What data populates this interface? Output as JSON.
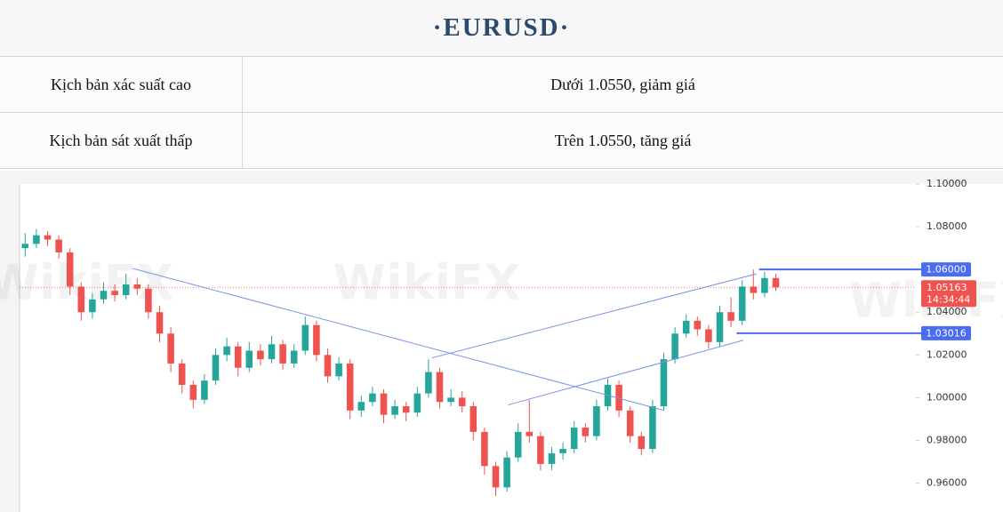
{
  "header": {
    "title": "·EURUSD·"
  },
  "table": {
    "rows": [
      [
        "Kịch bản xác suất cao",
        "Dưới 1.0550, giảm giá"
      ],
      [
        "Kịch bản sát xuất thấp",
        "Trên 1.0550, tăng giá"
      ]
    ]
  },
  "chart_data": {
    "type": "candlestick",
    "watermark": "WikiFX",
    "xlim": [
      -0.5,
      79.5
    ],
    "ylim": [
      0.949,
      1.1
    ],
    "yticks": [
      {
        "value": 0.96,
        "label": "0.96000"
      },
      {
        "value": 0.98,
        "label": "0.98000"
      },
      {
        "value": 1.0,
        "label": "1.00000"
      },
      {
        "value": 1.02,
        "label": "1.02000"
      },
      {
        "value": 1.04,
        "label": "1.04000"
      },
      {
        "value": 1.08,
        "label": "1.08000"
      },
      {
        "value": 1.1,
        "label": "1.10000"
      }
    ],
    "grid": false,
    "up_color": "#26a69a",
    "down_color": "#ef5350",
    "open": [
      1.07,
      1.072,
      1.076,
      1.074,
      1.068,
      1.052,
      1.04,
      1.046,
      1.05,
      1.048,
      1.053,
      1.051,
      1.04,
      1.03,
      1.016,
      1.006,
      0.999,
      1.008,
      1.02,
      1.024,
      1.014,
      1.022,
      1.018,
      1.025,
      1.016,
      1.022,
      1.034,
      1.02,
      1.01,
      1.016,
      0.994,
      0.998,
      1.002,
      0.992,
      0.996,
      0.993,
      1.002,
      1.012,
      0.998,
      1.0,
      0.996,
      0.984,
      0.968,
      0.958,
      0.972,
      0.984,
      0.982,
      0.969,
      0.974,
      0.976,
      0.986,
      0.982,
      0.996,
      1.006,
      0.994,
      0.982,
      0.976,
      0.996,
      1.018,
      1.03,
      1.036,
      1.032,
      1.026,
      1.04,
      1.036,
      1.052,
      1.049,
      1.056
    ],
    "high": [
      1.077,
      1.079,
      1.078,
      1.076,
      1.07,
      1.054,
      1.049,
      1.054,
      1.053,
      1.058,
      1.056,
      1.053,
      1.043,
      1.033,
      1.018,
      1.008,
      1.011,
      1.023,
      1.028,
      1.026,
      1.026,
      1.025,
      1.029,
      1.027,
      1.025,
      1.038,
      1.036,
      1.023,
      1.019,
      1.018,
      1.001,
      1.005,
      1.004,
      0.999,
      0.998,
      1.005,
      1.018,
      1.014,
      1.004,
      1.003,
      0.998,
      0.986,
      0.97,
      0.975,
      0.988,
      0.999,
      0.984,
      0.977,
      0.979,
      0.989,
      0.988,
      0.999,
      1.009,
      1.008,
      0.996,
      0.984,
      0.999,
      1.021,
      1.033,
      1.039,
      1.038,
      1.034,
      1.043,
      1.047,
      1.055,
      1.06,
      1.059,
      1.058
    ],
    "low": [
      1.066,
      1.07,
      1.071,
      1.065,
      1.048,
      1.036,
      1.037,
      1.044,
      1.045,
      1.046,
      1.048,
      1.037,
      1.026,
      1.012,
      1.002,
      0.995,
      0.997,
      1.006,
      1.017,
      1.01,
      1.012,
      1.015,
      1.016,
      1.013,
      1.014,
      1.02,
      1.017,
      1.007,
      1.008,
      0.99,
      0.991,
      0.996,
      0.988,
      0.99,
      0.989,
      0.991,
      1.0,
      0.995,
      0.996,
      0.993,
      0.98,
      0.964,
      0.954,
      0.956,
      0.97,
      0.979,
      0.966,
      0.966,
      0.971,
      0.974,
      0.979,
      0.98,
      0.994,
      0.991,
      0.979,
      0.973,
      0.974,
      0.994,
      1.016,
      1.028,
      1.029,
      1.023,
      1.024,
      1.033,
      1.034,
      1.046,
      1.047,
      1.05
    ],
    "close": [
      1.072,
      1.076,
      1.074,
      1.068,
      1.052,
      1.04,
      1.046,
      1.05,
      1.048,
      1.053,
      1.051,
      1.04,
      1.03,
      1.016,
      1.006,
      0.999,
      1.008,
      1.02,
      1.024,
      1.014,
      1.022,
      1.018,
      1.025,
      1.016,
      1.022,
      1.034,
      1.02,
      1.01,
      1.016,
      0.994,
      0.998,
      1.002,
      0.992,
      0.996,
      0.993,
      1.002,
      1.012,
      0.998,
      1.0,
      0.996,
      0.984,
      0.968,
      0.958,
      0.972,
      0.984,
      0.982,
      0.969,
      0.974,
      0.976,
      0.986,
      0.982,
      0.996,
      1.006,
      0.994,
      0.982,
      0.976,
      0.996,
      1.018,
      1.03,
      1.036,
      1.032,
      1.026,
      1.04,
      1.036,
      1.052,
      1.049,
      1.056,
      1.05163
    ],
    "levels": [
      {
        "value": 1.06,
        "label": "1.06000",
        "start": 65.5,
        "color": "#4a6cf0"
      },
      {
        "value": 1.03016,
        "label": "1.03016",
        "start": 63.5,
        "color": "#4a6cf0"
      }
    ],
    "current_price": {
      "value": 1.05163,
      "label": "1.05163",
      "countdown": "14:34:44",
      "color": "#ef5350"
    },
    "trendlines": [
      {
        "x": [
          9.6,
          57.0
        ],
        "y": [
          1.0605,
          0.9941
        ],
        "color": "#7b93e8"
      },
      {
        "x": [
          36.3,
          65.3
        ],
        "y": [
          1.0186,
          1.058
        ],
        "color": "#7b93e8"
      },
      {
        "x": [
          43.1,
          64.1
        ],
        "y": [
          0.9966,
          1.0269
        ],
        "color": "#7b93e8"
      }
    ]
  }
}
